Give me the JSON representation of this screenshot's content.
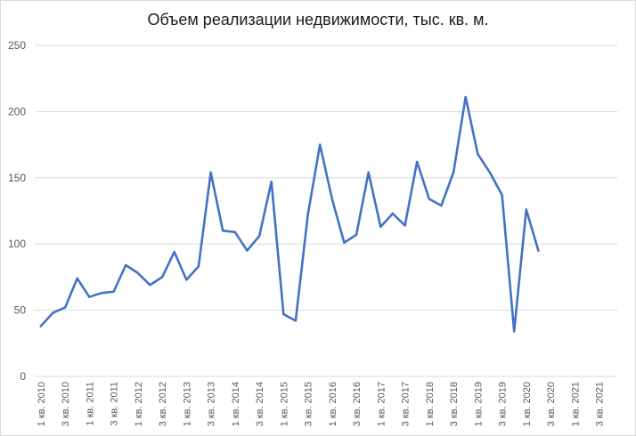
{
  "chart_data": {
    "type": "line",
    "title": "Объем реализации недвижимости, тыс. кв. м.",
    "xlabel": "",
    "ylabel": "",
    "ylim": [
      0,
      250
    ],
    "yticks": [
      0,
      50,
      100,
      150,
      200,
      250
    ],
    "grid": true,
    "legend": "none",
    "color": "#4472c4",
    "categories": [
      "1 кв. 2010",
      "2 кв. 2010",
      "3 кв. 2010",
      "4 кв. 2010",
      "1 кв. 2011",
      "2 кв. 2011",
      "3 кв. 2011",
      "4 кв. 2011",
      "1 кв. 2012",
      "2 кв. 2012",
      "3 кв. 2012",
      "4 кв. 2012",
      "1 кв. 2013",
      "2 кв. 2013",
      "3 кв. 2013",
      "4 кв. 2013",
      "1 кв. 2014",
      "2 кв. 2014",
      "3 кв. 2014",
      "4 кв. 2014",
      "1 кв. 2015",
      "2 кв. 2015",
      "3 кв. 2015",
      "4 кв. 2015",
      "1 кв. 2016",
      "2 кв. 2016",
      "3 кв. 2016",
      "4 кв. 2016",
      "1 кв. 2017",
      "2 кв. 2017",
      "3 кв. 2017",
      "4 кв. 2017",
      "1 кв. 2018",
      "2 кв. 2018",
      "3 кв. 2018",
      "4 кв. 2018",
      "1 кв. 2019",
      "2 кв. 2019",
      "3 кв. 2019",
      "4 кв. 2019",
      "1 кв. 2020",
      "2 кв. 2020",
      "3 кв. 2020",
      "4 кв. 2020",
      "1 кв. 2021",
      "2 кв. 2021",
      "3 кв. 2021",
      "4 кв. 2021"
    ],
    "tick_labels": [
      "1 кв. 2010",
      "3 кв. 2010",
      "1 кв. 2011",
      "3 кв. 2011",
      "1 кв. 2012",
      "3 кв. 2012",
      "1 кв. 2013",
      "3 кв. 2013",
      "1 кв. 2014",
      "3 кв. 2014",
      "1 кв. 2015",
      "3 кв. 2015",
      "1 кв. 2016",
      "3 кв. 2016",
      "1 кв. 2017",
      "3 кв. 2017",
      "1 кв. 2018",
      "3 кв. 2018",
      "1 кв. 2019",
      "3 кв. 2019",
      "1 кв. 2020",
      "3 кв. 2020",
      "1 кв. 2021",
      "3 кв. 2021"
    ],
    "values": [
      38,
      48,
      52,
      74,
      60,
      63,
      64,
      84,
      78,
      69,
      75,
      94,
      73,
      83,
      154,
      110,
      109,
      95,
      106,
      147,
      47,
      42,
      122,
      175,
      134,
      101,
      107,
      154,
      113,
      123,
      114,
      162,
      134,
      129,
      154,
      211,
      168,
      154,
      137,
      34,
      126,
      95,
      null,
      null,
      null,
      null,
      null,
      null
    ]
  }
}
